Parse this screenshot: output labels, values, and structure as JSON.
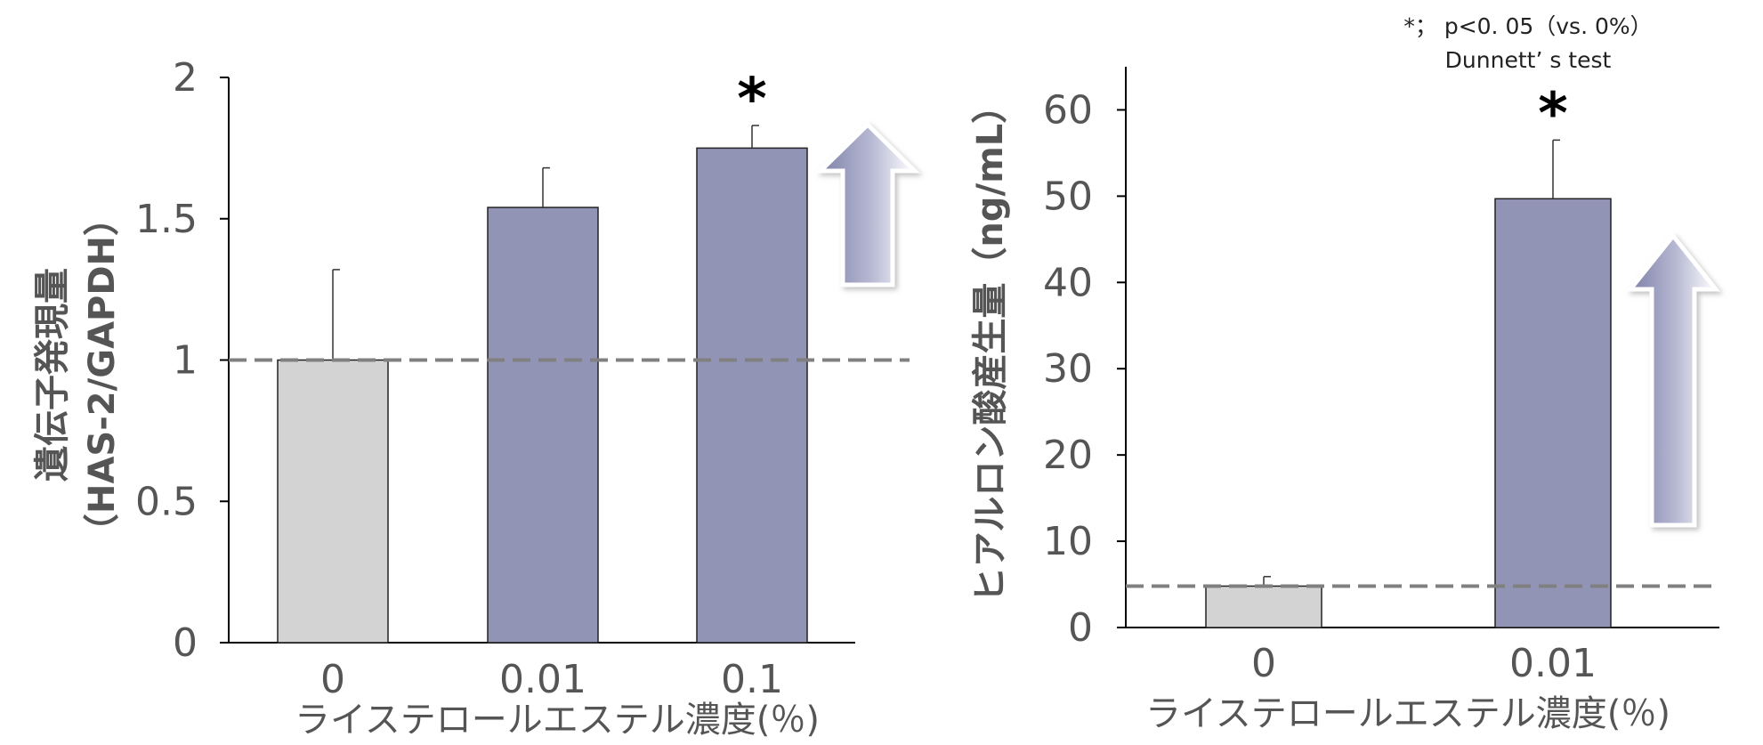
{
  "colors": {
    "control": "#d3d3d3",
    "treated": "#9294b6",
    "dashed": "#808080",
    "axis": "#000000"
  },
  "note": {
    "line1": "*； p<0. 05（vs. 0%）",
    "line2": "Dunnett’ s test"
  },
  "chart_data": [
    {
      "type": "bar",
      "categories": [
        "0",
        "0.01",
        "0.1"
      ],
      "values": [
        1.0,
        1.54,
        1.75
      ],
      "errors": [
        0.32,
        0.14,
        0.08
      ],
      "significant": [
        false,
        false,
        true
      ],
      "ylabel_line1": "遺伝子発現量",
      "ylabel_line2": "（HAS-2/GAPDH）",
      "xlabel": "ライステロールエステル濃度(％)",
      "ylim": [
        0,
        2
      ],
      "yticks": [
        "0",
        "0.5",
        "1",
        "1.5",
        "2"
      ],
      "baseline": 1.0,
      "arrow": "up",
      "marker": "*"
    },
    {
      "type": "bar",
      "categories": [
        "0",
        "0.01"
      ],
      "values": [
        4.8,
        49.7
      ],
      "errors": [
        1.1,
        6.8
      ],
      "significant": [
        false,
        true
      ],
      "ylabel": "ヒアルロン酸産生量（ng/mL）",
      "xlabel": "ライステロールエステル濃度(％)",
      "ylim": [
        0,
        65
      ],
      "yticks": [
        "0",
        "10",
        "20",
        "30",
        "40",
        "50",
        "60"
      ],
      "baseline": 4.8,
      "arrow": "up",
      "marker": "*"
    }
  ]
}
